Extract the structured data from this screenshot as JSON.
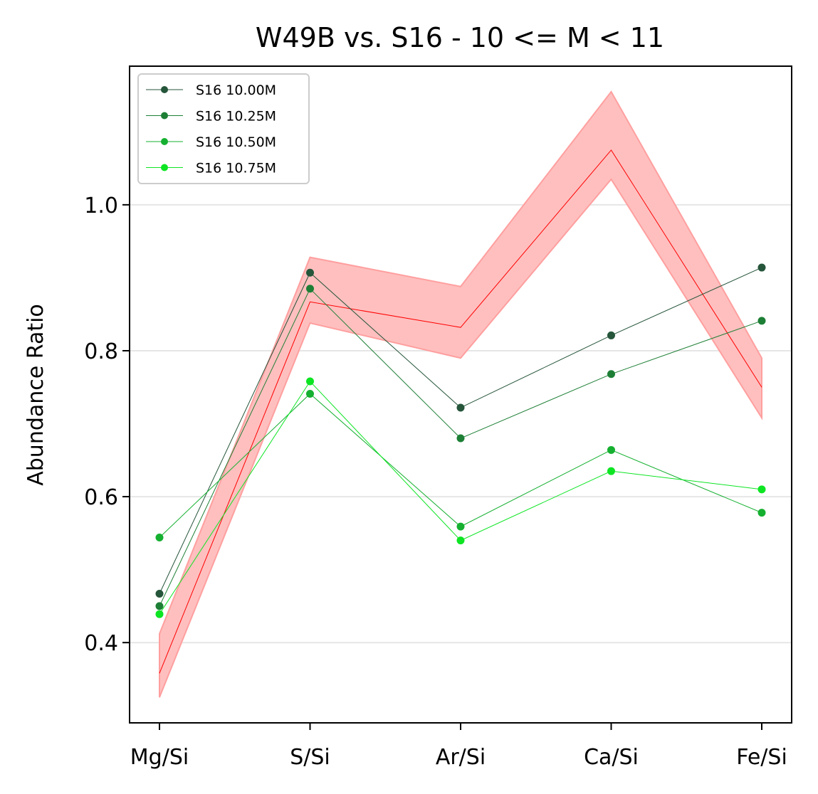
{
  "chart_data": {
    "type": "line",
    "title": "W49B vs. S16 - 10 <= M < 11",
    "xlabel": "",
    "ylabel": "Abundance Ratio",
    "categories": [
      "Mg/Si",
      "S/Si",
      "Ar/Si",
      "Ca/Si",
      "Fe/Si"
    ],
    "ylim": [
      0.29,
      1.19
    ],
    "yticks": [
      0.4,
      0.6,
      0.8,
      1.0
    ],
    "ytick_labels": [
      "0.4",
      "0.6",
      "0.8",
      "1.0"
    ],
    "grid": "horizontal",
    "legend_position": "top-left",
    "observed": {
      "color": "#ff0000",
      "band_color": "#ffbfbf",
      "values": [
        0.358,
        0.867,
        0.832,
        1.075,
        0.75
      ],
      "lower": [
        0.325,
        0.838,
        0.79,
        1.035,
        0.708
      ],
      "upper": [
        0.412,
        0.928,
        0.888,
        1.155,
        0.79
      ]
    },
    "series": [
      {
        "name": "S16 10.00M",
        "color": "#25553a",
        "values": [
          0.467,
          0.907,
          0.722,
          0.821,
          0.914
        ]
      },
      {
        "name": "S16 10.25M",
        "color": "#1d7f35",
        "values": [
          0.45,
          0.885,
          0.68,
          0.768,
          0.841
        ]
      },
      {
        "name": "S16 10.50M",
        "color": "#15b030",
        "values": [
          0.544,
          0.741,
          0.559,
          0.664,
          0.578
        ]
      },
      {
        "name": "S16 10.75M",
        "color": "#0de523",
        "values": [
          0.439,
          0.758,
          0.54,
          0.635,
          0.61
        ]
      }
    ]
  }
}
